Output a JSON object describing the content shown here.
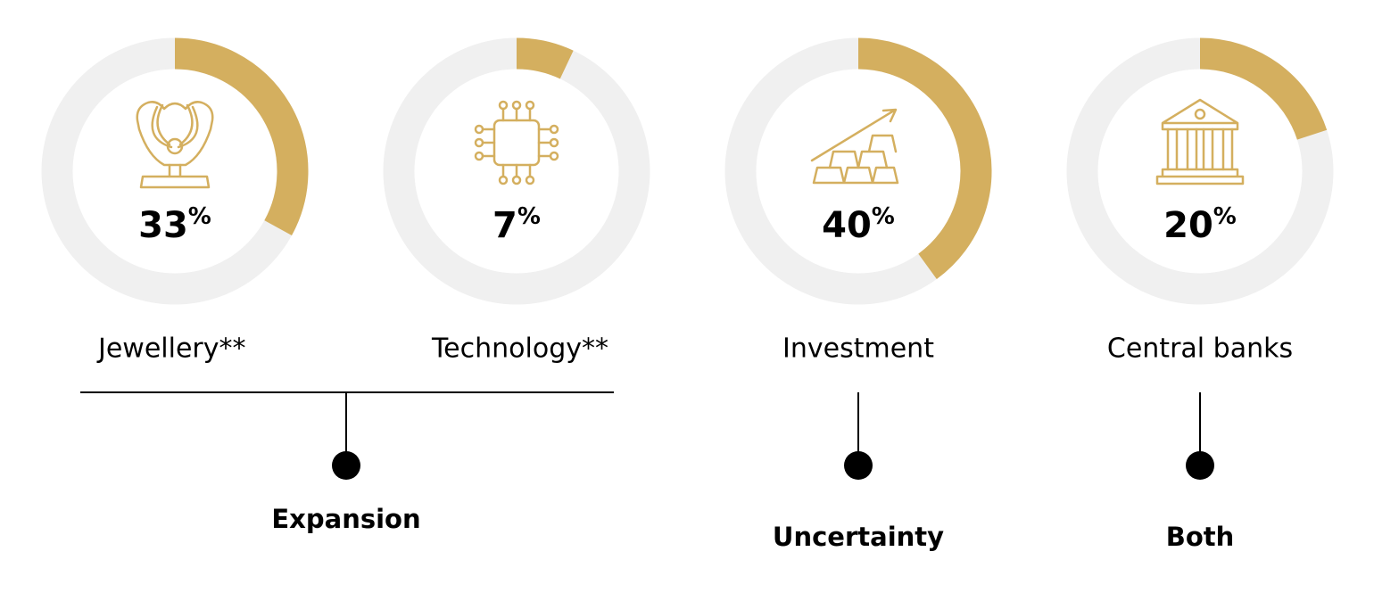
{
  "chart_data": [
    {
      "type": "donut",
      "value": 33,
      "unit": "%",
      "label": "Jewellery**",
      "color": "#d4af5f",
      "track_color": "#f0f0f0",
      "ylim": [
        0,
        100
      ]
    },
    {
      "type": "donut",
      "value": 7,
      "unit": "%",
      "label": "Technology**",
      "color": "#d4af5f",
      "track_color": "#f0f0f0",
      "ylim": [
        0,
        100
      ]
    },
    {
      "type": "donut",
      "value": 40,
      "unit": "%",
      "label": "Investment",
      "color": "#d4af5f",
      "track_color": "#f0f0f0",
      "ylim": [
        0,
        100
      ]
    },
    {
      "type": "donut",
      "value": 20,
      "unit": "%",
      "label": "Central banks",
      "color": "#d4af5f",
      "track_color": "#f0f0f0",
      "ylim": [
        0,
        100
      ]
    }
  ],
  "groups": [
    {
      "label": "Expansion"
    },
    {
      "label": "Uncertainty"
    },
    {
      "label": "Both"
    }
  ]
}
